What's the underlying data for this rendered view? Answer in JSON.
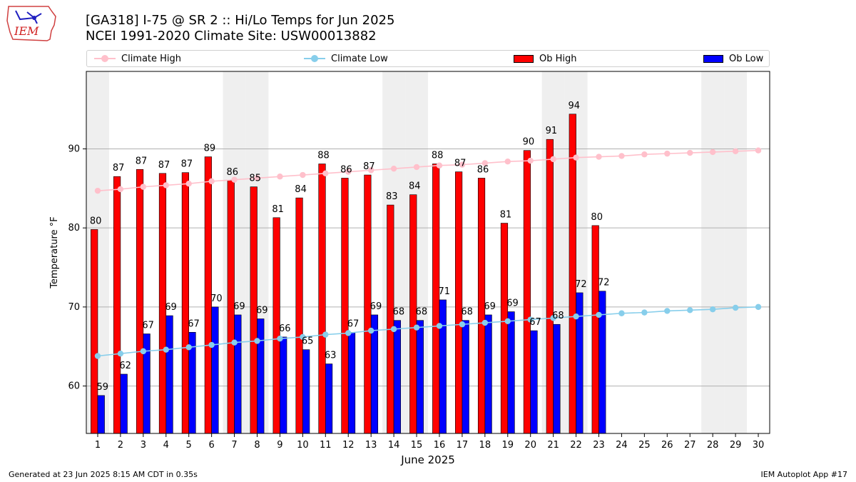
{
  "title_line1": "[GA318] I-75 @ SR 2 :: Hi/Lo Temps for Jun 2025",
  "title_line2": "NCEI 1991-2020 Climate Site: USW00013882",
  "logo_text": "IEM",
  "footer_left": "Generated at 23 Jun 2025 8:15 AM CDT in 0.35s",
  "footer_right": "IEM Autoplot App #17",
  "colors": {
    "ob_high": "#ff0000",
    "ob_low": "#0000ff",
    "climate_high": "#ffc0cb",
    "climate_low": "#87ceeb",
    "weekend_shade": "#efefef",
    "grid": "#b0b0b0"
  },
  "legend": [
    {
      "label": "Climate High",
      "kind": "line",
      "color": "#ffc0cb"
    },
    {
      "label": "Climate Low",
      "kind": "line",
      "color": "#87ceeb"
    },
    {
      "label": "Ob High",
      "kind": "bar",
      "color": "#ff0000"
    },
    {
      "label": "Ob Low",
      "kind": "bar",
      "color": "#0000ff"
    }
  ],
  "chart_data": {
    "type": "bar",
    "title": "[GA318] I-75 @ SR 2 :: Hi/Lo Temps for Jun 2025",
    "subtitle": "NCEI 1991-2020 Climate Site: USW00013882",
    "xlabel": "June 2025",
    "ylabel": "Temperature °F",
    "ylim": [
      54,
      99.8
    ],
    "yticks": [
      60,
      70,
      80,
      90
    ],
    "grid": "horizontal",
    "legend_position": "top",
    "days": [
      1,
      2,
      3,
      4,
      5,
      6,
      7,
      8,
      9,
      10,
      11,
      12,
      13,
      14,
      15,
      16,
      17,
      18,
      19,
      20,
      21,
      22,
      23,
      24,
      25,
      26,
      27,
      28,
      29,
      30
    ],
    "weekend_shaded_days": [
      1,
      7,
      8,
      14,
      15,
      21,
      22,
      28,
      29
    ],
    "series": [
      {
        "name": "Ob High",
        "kind": "bar",
        "values": [
          79.8,
          86.5,
          87.4,
          86.9,
          87.0,
          89.0,
          86.0,
          85.2,
          81.3,
          83.8,
          88.1,
          86.3,
          86.7,
          82.9,
          84.2,
          88.1,
          87.1,
          86.3,
          80.6,
          89.8,
          91.2,
          94.4,
          80.3
        ],
        "labels": [
          "80",
          "87",
          "87",
          "87",
          "87",
          "89",
          "86",
          "85",
          "81",
          "84",
          "88",
          "86",
          "87",
          "83",
          "84",
          "88",
          "87",
          "86",
          "81",
          "90",
          "91",
          "94",
          "80"
        ]
      },
      {
        "name": "Ob Low",
        "kind": "bar",
        "values": [
          58.8,
          61.5,
          66.6,
          68.9,
          66.8,
          70.0,
          69.0,
          68.5,
          66.2,
          64.6,
          62.8,
          66.8,
          69.0,
          68.3,
          68.3,
          70.9,
          68.3,
          69.0,
          69.4,
          67.0,
          67.8,
          71.8,
          72.0
        ],
        "labels": [
          "59",
          "62",
          "67",
          "69",
          "67",
          "70",
          "69",
          "69",
          "66",
          "65",
          "63",
          "67",
          "69",
          "68",
          "68",
          "71",
          "68",
          "69",
          "69",
          "67",
          "68",
          "72",
          "72"
        ]
      },
      {
        "name": "Climate High",
        "kind": "line",
        "values": [
          84.7,
          84.9,
          85.2,
          85.4,
          85.6,
          85.9,
          86.1,
          86.3,
          86.5,
          86.7,
          86.9,
          87.1,
          87.3,
          87.5,
          87.7,
          87.9,
          88.0,
          88.2,
          88.4,
          88.5,
          88.7,
          88.9,
          89.0,
          89.1,
          89.3,
          89.4,
          89.5,
          89.6,
          89.7,
          89.8
        ]
      },
      {
        "name": "Climate Low",
        "kind": "line",
        "values": [
          63.8,
          64.1,
          64.4,
          64.6,
          64.9,
          65.2,
          65.5,
          65.7,
          66.0,
          66.2,
          66.5,
          66.7,
          67.0,
          67.2,
          67.4,
          67.6,
          67.8,
          68.0,
          68.2,
          68.4,
          68.6,
          68.8,
          69.0,
          69.2,
          69.3,
          69.5,
          69.6,
          69.7,
          69.9,
          70.0
        ]
      }
    ]
  }
}
